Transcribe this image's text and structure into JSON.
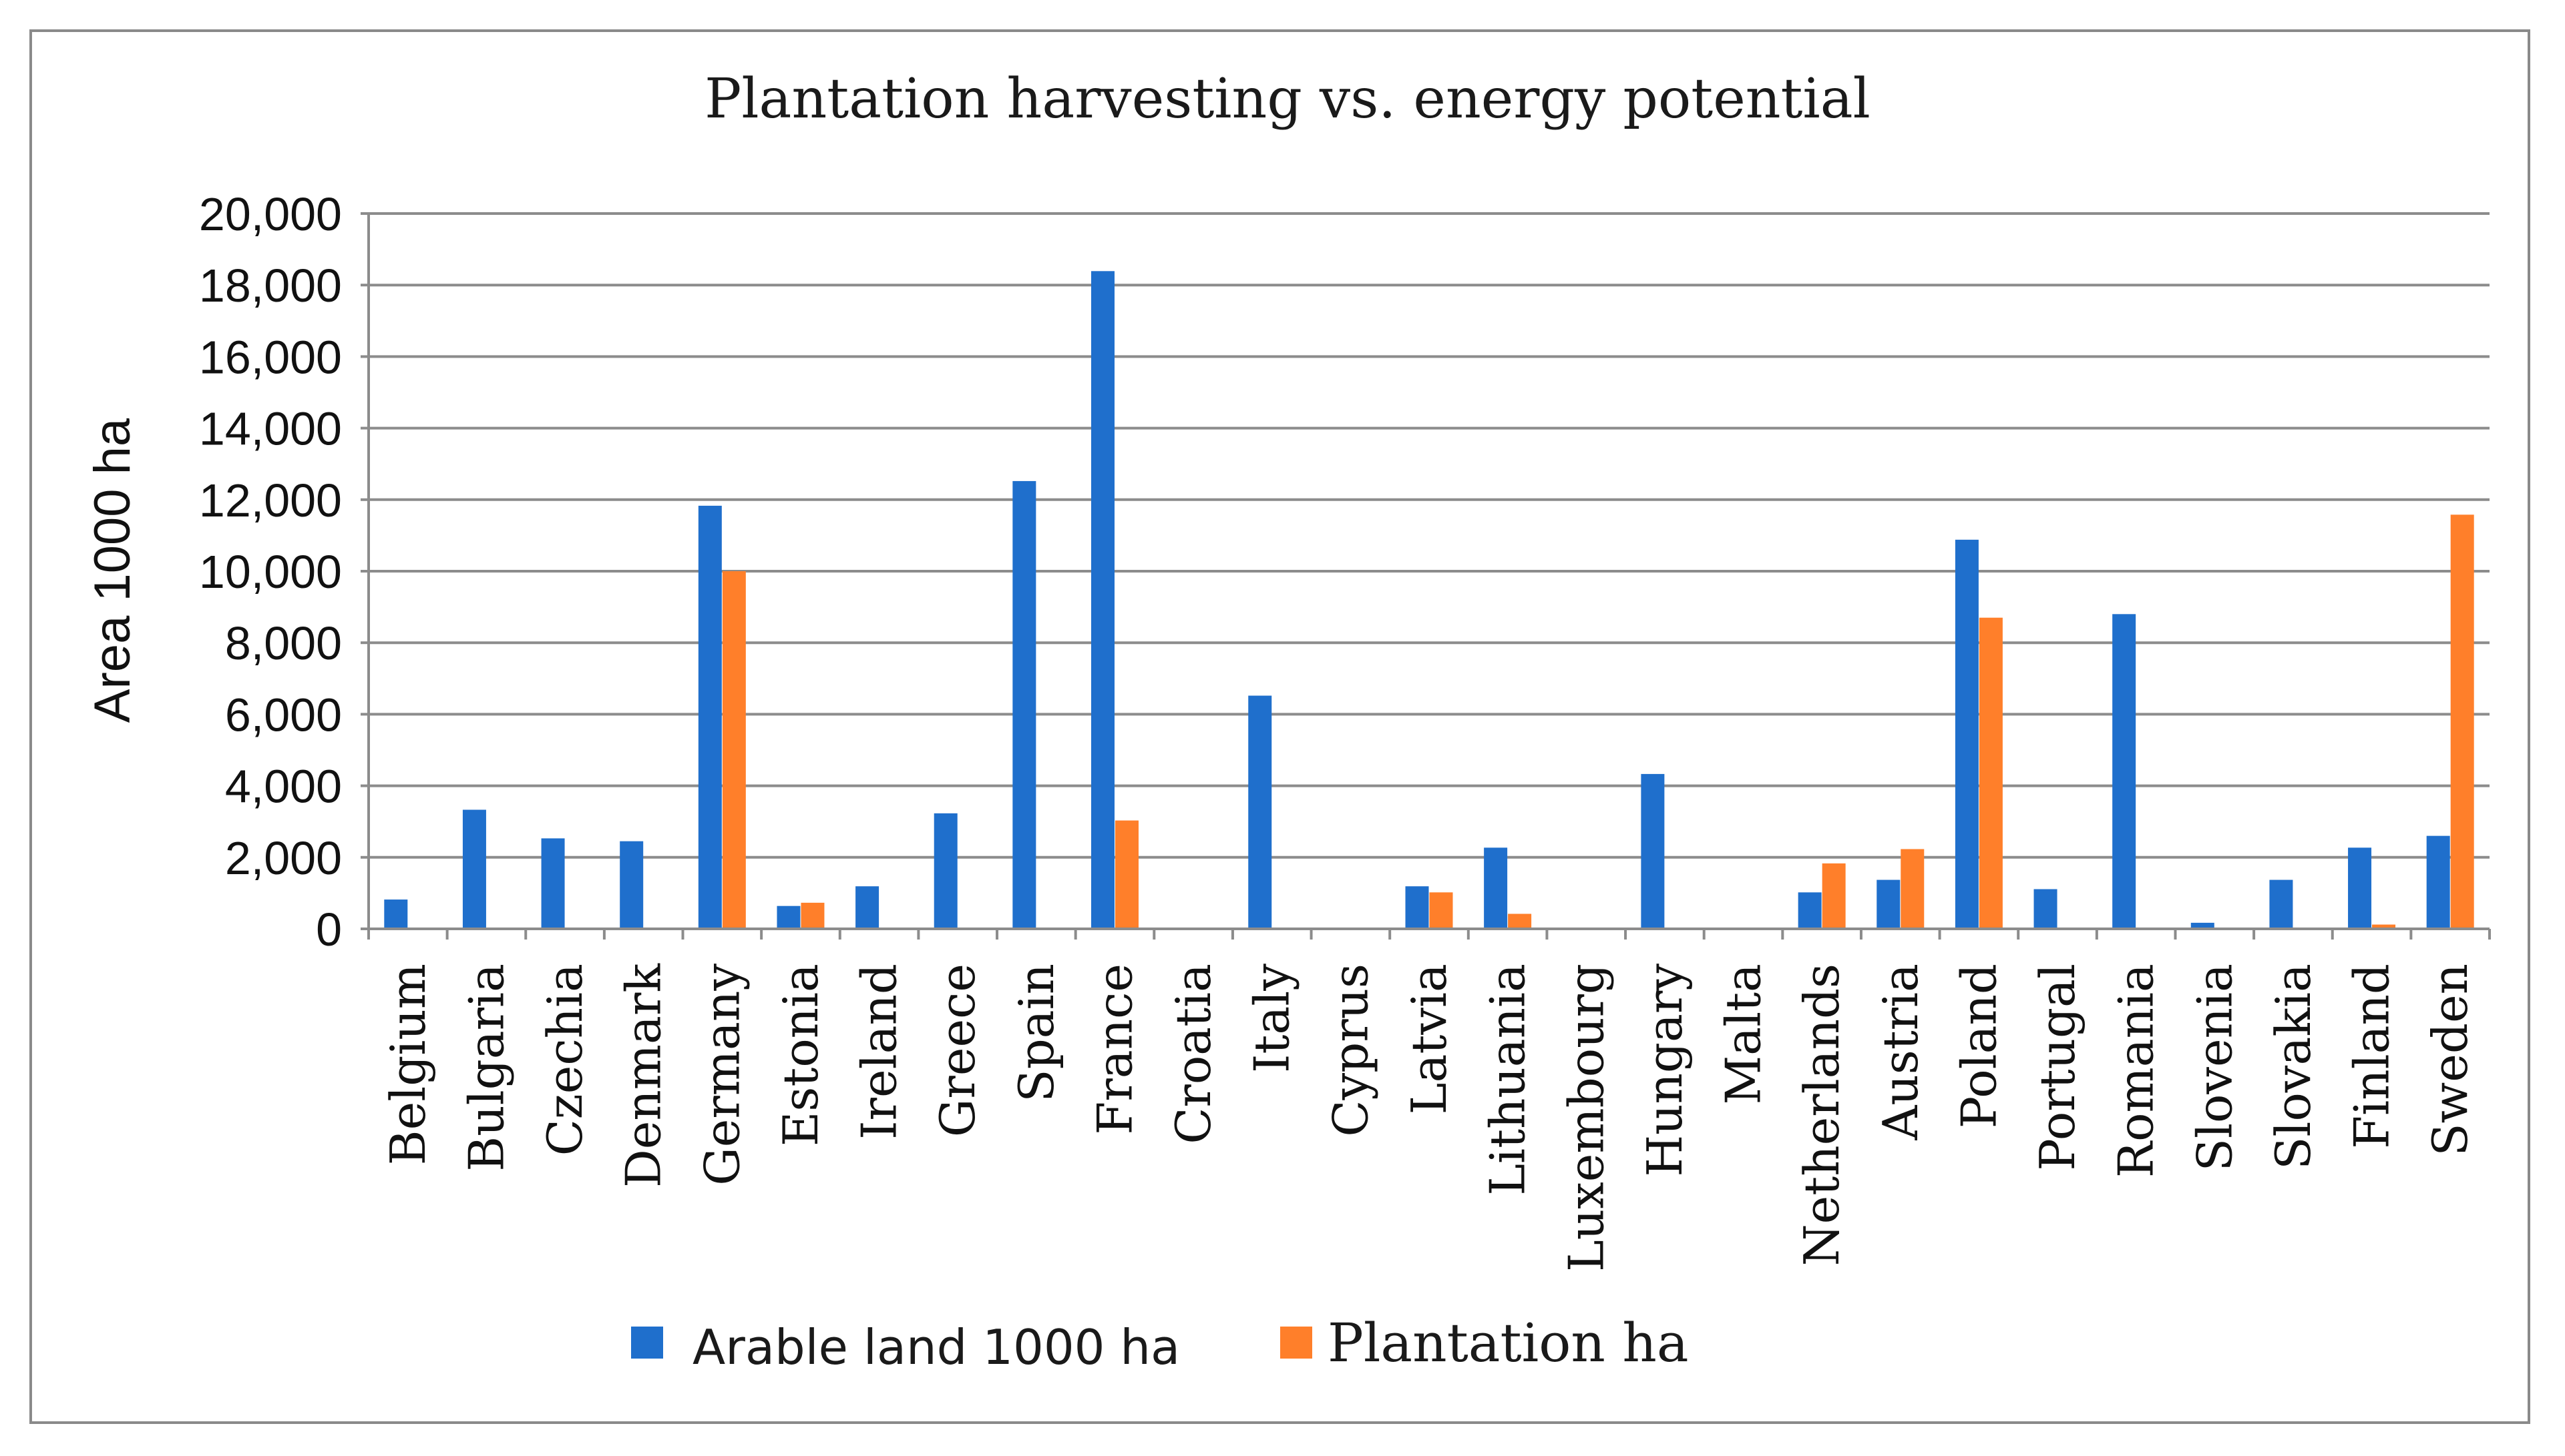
{
  "chart_data": {
    "type": "bar",
    "title": "Plantation harvesting vs. energy potential",
    "xlabel": "",
    "ylabel": "Area 1000 ha",
    "ylim": [
      0,
      20000
    ],
    "yticks": [
      0,
      2000,
      4000,
      6000,
      8000,
      10000,
      12000,
      14000,
      16000,
      18000,
      20000
    ],
    "ytick_labels": [
      "0",
      "2,000",
      "4,000",
      "6,000",
      "8,000",
      "10,000",
      "12,000",
      "14,000",
      "16,000",
      "18,000",
      "20,000"
    ],
    "grid": true,
    "legend_position": "bottom",
    "categories": [
      "Belgium",
      "Bulgaria",
      "Czechia",
      "Denmark",
      "Germany",
      "Estonia",
      "Ireland",
      "Greece",
      "Spain",
      "France",
      "Croatia",
      "Italy",
      "Cyprus",
      "Latvia",
      "Lithuania",
      "Luxembourg",
      "Hungary",
      "Malta",
      "Netherlands",
      "Austria",
      "Poland",
      "Portugal",
      "Romania",
      "Slovenia",
      "Slovakia",
      "Finland",
      "Sweden"
    ],
    "series": [
      {
        "name": "Arable land 1000 ha",
        "color": "#1f6fcc",
        "values": [
          820,
          3330,
          2530,
          2450,
          11830,
          640,
          1190,
          3230,
          12520,
          18390,
          0,
          6520,
          0,
          1190,
          2270,
          0,
          4330,
          0,
          1020,
          1370,
          10880,
          1110,
          8800,
          170,
          1370,
          2270,
          2600
        ]
      },
      {
        "name": "Plantation ha",
        "color": "#ff7f2a",
        "values": [
          0,
          0,
          0,
          0,
          10000,
          730,
          0,
          0,
          0,
          3030,
          0,
          0,
          0,
          1020,
          420,
          0,
          0,
          0,
          1830,
          2230,
          8700,
          0,
          0,
          0,
          0,
          120,
          11580
        ]
      }
    ]
  }
}
